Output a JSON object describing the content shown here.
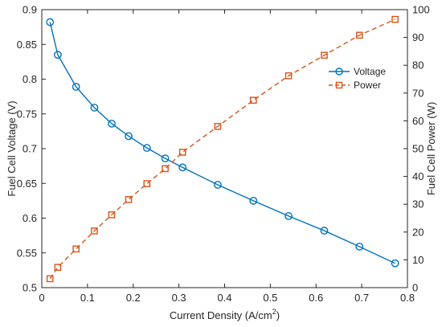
{
  "chart_data": {
    "type": "line",
    "xlabel_main": "Current Density (A/cm",
    "xlabel_sup": "2",
    "xlabel_tail": ")",
    "ylabel_left": "Fuel Cell Voltage (V)",
    "ylabel_right": "Fuel Cell Power (W)",
    "xlim": [
      0,
      0.8
    ],
    "ylim_left": [
      0.5,
      0.9
    ],
    "ylim_right": [
      0,
      100
    ],
    "x_ticks": [
      "0",
      "0.1",
      "0.2",
      "0.3",
      "0.4",
      "0.5",
      "0.6",
      "0.7",
      "0.8"
    ],
    "y_left_ticks": [
      "0.5",
      "0.55",
      "0.6",
      "0.65",
      "0.7",
      "0.75",
      "0.8",
      "0.85",
      "0.9"
    ],
    "y_right_ticks": [
      "0",
      "10",
      "20",
      "30",
      "40",
      "50",
      "60",
      "70",
      "80",
      "90",
      "100"
    ],
    "grid": false,
    "legend_position": "top-right",
    "series": [
      {
        "name": "Voltage",
        "axis": "left",
        "color": "#0072BD",
        "marker": "circle",
        "line": "solid",
        "x": [
          0.018,
          0.035,
          0.075,
          0.115,
          0.153,
          0.19,
          0.23,
          0.27,
          0.308,
          0.385,
          0.463,
          0.54,
          0.618,
          0.695,
          0.773
        ],
        "y": [
          0.882,
          0.835,
          0.789,
          0.759,
          0.736,
          0.718,
          0.701,
          0.686,
          0.673,
          0.648,
          0.625,
          0.603,
          0.582,
          0.559,
          0.535
        ]
      },
      {
        "name": "Power",
        "axis": "right",
        "color": "#D95319",
        "marker": "square",
        "line": "dashed",
        "x": [
          0.018,
          0.035,
          0.075,
          0.115,
          0.153,
          0.19,
          0.23,
          0.27,
          0.308,
          0.385,
          0.463,
          0.54,
          0.618,
          0.695,
          0.773
        ],
        "y": [
          3.2,
          7.3,
          13.9,
          20.4,
          26.2,
          31.7,
          37.4,
          42.8,
          48.7,
          58.0,
          67.4,
          76.2,
          83.6,
          90.8,
          96.5
        ]
      }
    ]
  }
}
